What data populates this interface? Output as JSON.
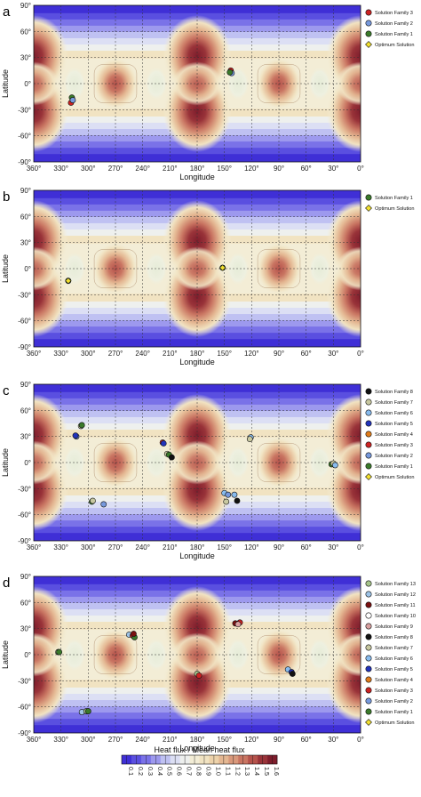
{
  "chart_data": [
    {
      "type": "heatmap",
      "panel_label": "a",
      "xlabel": "Longitude",
      "ylabel": "Latitude",
      "xticks": [
        "360°",
        "330°",
        "300°",
        "270°",
        "240°",
        "210°",
        "180°",
        "150°",
        "120°",
        "90°",
        "60°",
        "30°",
        "0°"
      ],
      "yticks": [
        "90°",
        "60°",
        "30°",
        "0°",
        "-30°",
        "-60°",
        "-90°"
      ],
      "xlim": [
        360,
        0
      ],
      "ylim": [
        -90,
        90
      ],
      "legend": [
        {
          "name": "Solution Family 3",
          "color": "#cc2222",
          "shape": "circle"
        },
        {
          "name": "Solution Family 2",
          "color": "#7799dd",
          "shape": "circle"
        },
        {
          "name": "Solution Family 1",
          "color": "#3a7a2a",
          "shape": "circle"
        },
        {
          "name": "Optimum Solution",
          "color": "#f2e030",
          "shape": "diamond"
        }
      ],
      "points": [
        {
          "series": "Solution Family 1",
          "lon": 318,
          "lat": -16
        },
        {
          "series": "Solution Family 3",
          "lon": 319,
          "lat": -22
        },
        {
          "series": "Solution Family 2",
          "lon": 317,
          "lat": -19
        },
        {
          "series": "Solution Family 3",
          "lon": 143,
          "lat": 15
        },
        {
          "series": "Solution Family 2",
          "lon": 142,
          "lat": 12
        },
        {
          "series": "Solution Family 1",
          "lon": 144,
          "lat": 13
        }
      ]
    },
    {
      "type": "heatmap",
      "panel_label": "b",
      "xlabel": "Longitude",
      "ylabel": "Latitude",
      "xticks": [
        "360°",
        "330°",
        "300°",
        "270°",
        "240°",
        "210°",
        "180°",
        "150°",
        "120°",
        "90°",
        "60°",
        "30°",
        "0°"
      ],
      "yticks": [
        "90°",
        "60°",
        "30°",
        "0°",
        "-30°",
        "-60°",
        "-90°"
      ],
      "xlim": [
        360,
        0
      ],
      "ylim": [
        -90,
        90
      ],
      "legend": [
        {
          "name": "Solution Family 1",
          "color": "#3a7a2a",
          "shape": "circle"
        },
        {
          "name": "Optimum Solution",
          "color": "#f2e030",
          "shape": "diamond"
        }
      ],
      "points": [
        {
          "series": "Solution Family 1",
          "lon": 322,
          "lat": -14
        },
        {
          "series": "Optimum Solution",
          "lon": 322,
          "lat": -14
        },
        {
          "series": "Solution Family 1",
          "lon": 152,
          "lat": 1
        },
        {
          "series": "Optimum Solution",
          "lon": 152,
          "lat": 1
        }
      ]
    },
    {
      "type": "heatmap",
      "panel_label": "c",
      "xlabel": "Longitude",
      "ylabel": "Latitude",
      "xticks": [
        "360°",
        "330°",
        "300°",
        "270°",
        "240°",
        "210°",
        "180°",
        "150°",
        "120°",
        "90°",
        "60°",
        "30°",
        "0°"
      ],
      "yticks": [
        "90°",
        "60°",
        "30°",
        "0°",
        "-30°",
        "-60°",
        "-90°"
      ],
      "xlim": [
        360,
        0
      ],
      "ylim": [
        -90,
        90
      ],
      "legend": [
        {
          "name": "Solution Family 8",
          "color": "#111111",
          "shape": "circle"
        },
        {
          "name": "Solution Family 7",
          "color": "#c8c8a0",
          "shape": "circle"
        },
        {
          "name": "Solution Family 6",
          "color": "#88bbee",
          "shape": "circle"
        },
        {
          "name": "Solution Family 5",
          "color": "#2233bb",
          "shape": "circle"
        },
        {
          "name": "Solution Family 4",
          "color": "#e07b1a",
          "shape": "circle"
        },
        {
          "name": "Solution Family 3",
          "color": "#cc2222",
          "shape": "circle"
        },
        {
          "name": "Solution Family 2",
          "color": "#7799dd",
          "shape": "circle"
        },
        {
          "name": "Solution Family 1",
          "color": "#3a7a2a",
          "shape": "circle"
        },
        {
          "name": "Optimum Solution",
          "color": "#f2e030",
          "shape": "diamond"
        }
      ],
      "points": [
        {
          "series": "Solution Family 7",
          "lon": 308,
          "lat": 42
        },
        {
          "series": "Solution Family 1",
          "lon": 307,
          "lat": 43
        },
        {
          "series": "Solution Family 2",
          "lon": 313,
          "lat": 30
        },
        {
          "series": "Solution Family 5",
          "lon": 314,
          "lat": 31
        },
        {
          "series": "Solution Family 1",
          "lon": 296,
          "lat": -45
        },
        {
          "series": "Solution Family 7",
          "lon": 295,
          "lat": -44
        },
        {
          "series": "Solution Family 2",
          "lon": 283,
          "lat": -48
        },
        {
          "series": "Solution Family 3",
          "lon": 218,
          "lat": 23
        },
        {
          "series": "Solution Family 5",
          "lon": 217,
          "lat": 22
        },
        {
          "series": "Solution Family 7",
          "lon": 213,
          "lat": 10
        },
        {
          "series": "Solution Family 1",
          "lon": 211,
          "lat": 9
        },
        {
          "series": "Solution Family 8",
          "lon": 208,
          "lat": 6
        },
        {
          "series": "Solution Family 6",
          "lon": 150,
          "lat": -35
        },
        {
          "series": "Solution Family 2",
          "lon": 146,
          "lat": -37
        },
        {
          "series": "Solution Family 7",
          "lon": 148,
          "lat": -45
        },
        {
          "series": "Solution Family 8",
          "lon": 136,
          "lat": -44
        },
        {
          "series": "Solution Family 6",
          "lon": 139,
          "lat": -37
        },
        {
          "series": "Solution Family 6",
          "lon": 121,
          "lat": 29
        },
        {
          "series": "Solution Family 7",
          "lon": 122,
          "lat": 27
        },
        {
          "series": "Solution Family 1",
          "lon": 32,
          "lat": -2
        },
        {
          "series": "Solution Family 7",
          "lon": 30,
          "lat": -1
        },
        {
          "series": "Solution Family 6",
          "lon": 28,
          "lat": -3
        }
      ]
    },
    {
      "type": "heatmap",
      "panel_label": "d",
      "xlabel": "Longitude",
      "ylabel": "Latitude",
      "xticks": [
        "360°",
        "330°",
        "300°",
        "270°",
        "240°",
        "210°",
        "180°",
        "150°",
        "120°",
        "90°",
        "60°",
        "30°",
        "0°"
      ],
      "yticks": [
        "90°",
        "60°",
        "30°",
        "0°",
        "-30°",
        "-60°",
        "-90°"
      ],
      "xlim": [
        360,
        0
      ],
      "ylim": [
        -90,
        90
      ],
      "legend": [
        {
          "name": "Solution Family 13",
          "color": "#a6c48a",
          "shape": "circle"
        },
        {
          "name": "Solution Family 12",
          "color": "#9dc3e6",
          "shape": "circle"
        },
        {
          "name": "Solution Family 11",
          "color": "#7a1010",
          "shape": "circle"
        },
        {
          "name": "Solution Family 10",
          "color": "#ffffff",
          "shape": "circle"
        },
        {
          "name": "Solution Family 9",
          "color": "#d8a0a0",
          "shape": "circle"
        },
        {
          "name": "Solution Family 8",
          "color": "#111111",
          "shape": "circle"
        },
        {
          "name": "Solution Family 7",
          "color": "#c8c8a0",
          "shape": "circle"
        },
        {
          "name": "Solution Family 6",
          "color": "#88bbee",
          "shape": "circle"
        },
        {
          "name": "Solution Family 5",
          "color": "#2233bb",
          "shape": "circle"
        },
        {
          "name": "Solution Family 4",
          "color": "#e07b1a",
          "shape": "circle"
        },
        {
          "name": "Solution Family 3",
          "color": "#cc2222",
          "shape": "circle"
        },
        {
          "name": "Solution Family 2",
          "color": "#7799dd",
          "shape": "circle"
        },
        {
          "name": "Solution Family 1",
          "color": "#3a7a2a",
          "shape": "circle"
        },
        {
          "name": "Optimum Solution",
          "color": "#f2e030",
          "shape": "diamond"
        }
      ],
      "points": [
        {
          "series": "Solution Family 13",
          "lon": 333,
          "lat": 3
        },
        {
          "series": "Solution Family 1",
          "lon": 332,
          "lat": 3
        },
        {
          "series": "Solution Family 12",
          "lon": 307,
          "lat": -66
        },
        {
          "series": "Solution Family 13",
          "lon": 302,
          "lat": -65
        },
        {
          "series": "Solution Family 1",
          "lon": 300,
          "lat": -65
        },
        {
          "series": "Solution Family 12",
          "lon": 255,
          "lat": 23
        },
        {
          "series": "Solution Family 3",
          "lon": 251,
          "lat": 22
        },
        {
          "series": "Solution Family 1",
          "lon": 249,
          "lat": 20
        },
        {
          "series": "Solution Family 11",
          "lon": 250,
          "lat": 24
        },
        {
          "series": "Solution Family 13",
          "lon": 180,
          "lat": -22
        },
        {
          "series": "Solution Family 3",
          "lon": 178,
          "lat": -24
        },
        {
          "series": "Solution Family 11",
          "lon": 138,
          "lat": 36
        },
        {
          "series": "Solution Family 3",
          "lon": 133,
          "lat": 37
        },
        {
          "series": "Solution Family 9",
          "lon": 135,
          "lat": 35
        },
        {
          "series": "Solution Family 6",
          "lon": 80,
          "lat": -17
        },
        {
          "series": "Solution Family 5",
          "lon": 76,
          "lat": -20
        },
        {
          "series": "Solution Family 8",
          "lon": 75,
          "lat": -22
        }
      ]
    }
  ],
  "colorbar": {
    "label": "Heat flux / Mean heat flux",
    "ticks": [
      "0.1",
      "0.2",
      "0.3",
      "0.4",
      "0.5",
      "0.6",
      "0.7",
      "0.8",
      "0.9",
      "1.0",
      "1.1",
      "1.2",
      "1.3",
      "1.4",
      "1.5",
      "1.6"
    ],
    "colors": [
      "#3f2fd6",
      "#5a4fe0",
      "#7a72e8",
      "#9d99ee",
      "#bfc1f2",
      "#dcdff4",
      "#eef0ee",
      "#f3edd6",
      "#f1e3c2",
      "#edd2aa",
      "#e4b792",
      "#d9987b",
      "#c97562",
      "#b5524b",
      "#993339",
      "#7e1d2c"
    ]
  }
}
